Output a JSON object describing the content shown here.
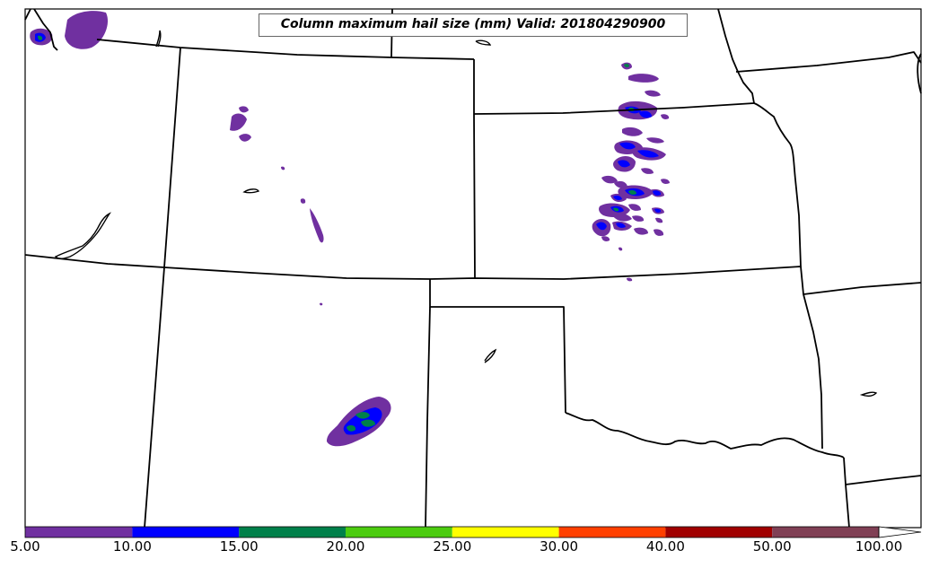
{
  "title": "Column maximum hail size (mm) Valid: 201804290900",
  "colorbar": {
    "labels": [
      "5.00",
      "10.00",
      "15.00",
      "20.00",
      "25.00",
      "30.00",
      "40.00",
      "50.00",
      "100.00"
    ],
    "colors": [
      "#7030a0",
      "#0000ff",
      "#00804a",
      "#4ccc10",
      "#ffff00",
      "#ff4000",
      "#a00000",
      "#804055",
      "#ffffff"
    ]
  },
  "colors": {
    "state_lines": "#000000",
    "hail_5_10": "#7030a0",
    "hail_10_15": "#0000ff",
    "hail_15_20": "#00804a",
    "hail_20_25": "#4ccc10"
  }
}
